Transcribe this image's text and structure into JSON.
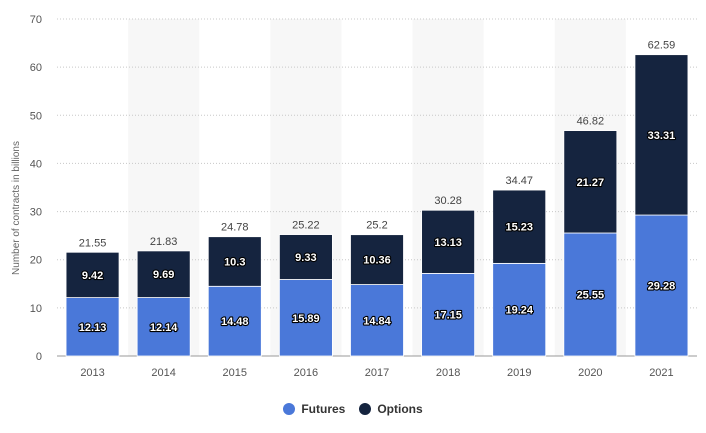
{
  "chart_data": {
    "type": "bar",
    "stacked": true,
    "categories": [
      "2013",
      "2014",
      "2015",
      "2016",
      "2017",
      "2018",
      "2019",
      "2020",
      "2021"
    ],
    "series": [
      {
        "name": "Futures",
        "color": "#4a78d9",
        "values": [
          12.13,
          12.14,
          14.48,
          15.89,
          14.84,
          17.15,
          19.24,
          25.55,
          29.28
        ]
      },
      {
        "name": "Options",
        "color": "#15243f",
        "values": [
          9.42,
          9.69,
          10.3,
          9.33,
          10.36,
          13.13,
          15.23,
          21.27,
          33.31
        ]
      }
    ],
    "totals": [
      "21.55",
      "21.83",
      "24.78",
      "25.22",
      "25.2",
      "30.28",
      "34.47",
      "46.82",
      "62.59"
    ],
    "ylabel": "Number of contracts in billions",
    "xlabel": "",
    "ylim": [
      0,
      70
    ],
    "yticks": [
      0,
      10,
      20,
      30,
      40,
      50,
      60,
      70
    ],
    "grid": true,
    "legend_position": "bottom-center"
  }
}
